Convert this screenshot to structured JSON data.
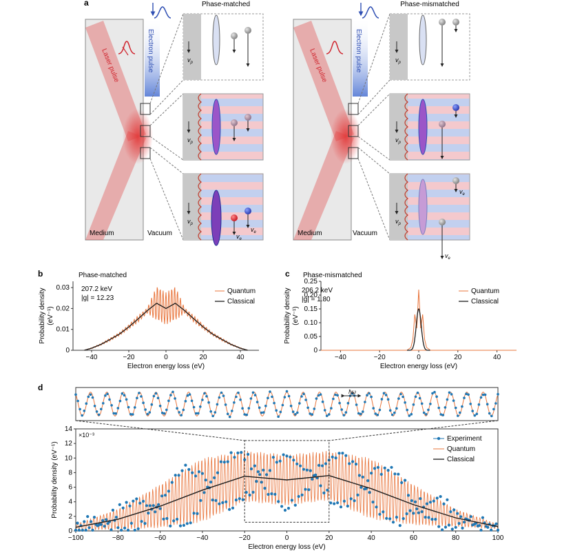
{
  "panel_labels": {
    "a": "a",
    "b": "b",
    "c": "c",
    "d": "d"
  },
  "panel_a": {
    "left_title": "Phase-matched",
    "right_title": "Phase-mismatched",
    "laser_label": "Laser pulse",
    "electron_label": "Electron pulse",
    "medium_label": "Medium",
    "vacuum_label": "Vacuum",
    "vp_label": "v",
    "vp_sub": "p",
    "ve_label": "v",
    "ve_sub": "e"
  },
  "colors": {
    "quantum": "#e8743b",
    "classical": "#1a1a1a",
    "experiment": "#1f77b4",
    "laser": "#e23b3b",
    "electron": "#2f4fb3"
  },
  "chart_data": [
    {
      "id": "b",
      "type": "line",
      "title": "Phase-matched",
      "xlabel": "Electron energy loss (eV)",
      "ylabel": "Probability density",
      "ylabel_units": "(eV⁻¹)",
      "xlim": [
        -50,
        50
      ],
      "ylim": [
        0,
        0.033
      ],
      "xticks": [
        -40,
        -20,
        0,
        20,
        40
      ],
      "xtick_labels": [
        "−40",
        "−20",
        "0",
        "20",
        "40"
      ],
      "yticks": [
        0,
        0.01,
        0.02,
        0.03
      ],
      "ytick_labels": [
        "0",
        "0.01",
        "0.02",
        "0.03"
      ],
      "annotation_lines": [
        "207.2 keV",
        "|g| = 12.23"
      ],
      "legend": [
        "Quantum",
        "Classical"
      ],
      "series": [
        {
          "name": "Quantum",
          "x": [
            -44,
            -40,
            -35,
            -30,
            -25,
            -20,
            -15,
            -10,
            -5,
            0,
            5,
            10,
            15,
            20,
            25,
            30,
            35,
            40,
            44
          ],
          "y": [
            0,
            0.0012,
            0.003,
            0.0055,
            0.008,
            0.0115,
            0.0155,
            0.019,
            0.029,
            0.026,
            0.029,
            0.019,
            0.0155,
            0.0115,
            0.008,
            0.0055,
            0.003,
            0.0012,
            0
          ]
        },
        {
          "name": "Classical",
          "x": [
            -44,
            -40,
            -35,
            -30,
            -25,
            -20,
            -15,
            -10,
            -5,
            0,
            5,
            10,
            15,
            20,
            25,
            30,
            35,
            40,
            44
          ],
          "y": [
            0,
            0.001,
            0.0028,
            0.0052,
            0.0078,
            0.0112,
            0.015,
            0.019,
            0.0225,
            0.02,
            0.0225,
            0.019,
            0.015,
            0.0112,
            0.0078,
            0.0052,
            0.0028,
            0.001,
            0
          ]
        }
      ]
    },
    {
      "id": "c",
      "type": "line",
      "title": "Phase-mismatched",
      "xlabel": "Electron energy loss (eV)",
      "ylabel": "Probability density",
      "ylabel_units": "(eV⁻¹)",
      "xlim": [
        -50,
        50
      ],
      "ylim": [
        0,
        0.25
      ],
      "xticks": [
        -40,
        -20,
        0,
        20,
        40
      ],
      "xtick_labels": [
        "−40",
        "−20",
        "0",
        "20",
        "40"
      ],
      "yticks": [
        0,
        0.05,
        0.1,
        0.15,
        0.2,
        0.25
      ],
      "ytick_labels": [
        "0",
        "0.05",
        "0.10",
        "0.15",
        "0.20",
        "0.25"
      ],
      "annotation_lines": [
        "206.2 keV",
        "|g| = 1.80"
      ],
      "legend": [
        "Quantum",
        "Classical"
      ],
      "series": [
        {
          "name": "Quantum",
          "x": [
            -6,
            -4,
            -3,
            -2,
            -1,
            0,
            1,
            2,
            3,
            4,
            6
          ],
          "y": [
            0,
            0.01,
            0.04,
            0.13,
            0.08,
            0.22,
            0.08,
            0.13,
            0.04,
            0.01,
            0
          ]
        },
        {
          "name": "Classical",
          "x": [
            -6,
            -4,
            -3,
            -2,
            -1,
            0,
            1,
            2,
            3,
            4,
            6
          ],
          "y": [
            0,
            0.01,
            0.03,
            0.08,
            0.13,
            0.15,
            0.13,
            0.08,
            0.03,
            0.01,
            0
          ]
        }
      ]
    },
    {
      "id": "d",
      "type": "line",
      "xlabel": "Electron energy loss (eV)",
      "ylabel": "Probability density (eV⁻¹)",
      "y_multiplier": "×10⁻³",
      "xlim": [
        -100,
        100
      ],
      "ylim": [
        0,
        14
      ],
      "xticks": [
        -100,
        -80,
        -60,
        -40,
        -20,
        0,
        20,
        40,
        60,
        80,
        100
      ],
      "xtick_labels": [
        "−100",
        "−80",
        "−60",
        "−40",
        "−20",
        "0",
        "20",
        "40",
        "60",
        "80",
        "100"
      ],
      "yticks": [
        0,
        2,
        4,
        6,
        8,
        10,
        12,
        14
      ],
      "ytick_labels": [
        "0",
        "2",
        "4",
        "6",
        "8",
        "10",
        "12",
        "14"
      ],
      "legend": [
        "Experiment",
        "Quantum",
        "Classical"
      ],
      "inset_label": "ħω",
      "inset_xlim": [
        -20,
        20
      ],
      "series": [
        {
          "name": "Classical",
          "x": [
            -100,
            -80,
            -60,
            -40,
            -20,
            0,
            20,
            40,
            60,
            80,
            100
          ],
          "y": [
            0.5,
            1.6,
            3.4,
            5.6,
            7.5,
            7.0,
            7.6,
            5.8,
            3.6,
            1.8,
            0.6
          ]
        },
        {
          "name": "Quantum",
          "envelope_max": [
            0.9,
            3,
            6.4,
            10,
            11,
            10.5,
            11,
            10,
            6.4,
            3,
            0.9
          ],
          "x": [
            -100,
            -80,
            -60,
            -40,
            -20,
            0,
            20,
            40,
            60,
            80,
            100
          ]
        }
      ]
    }
  ]
}
